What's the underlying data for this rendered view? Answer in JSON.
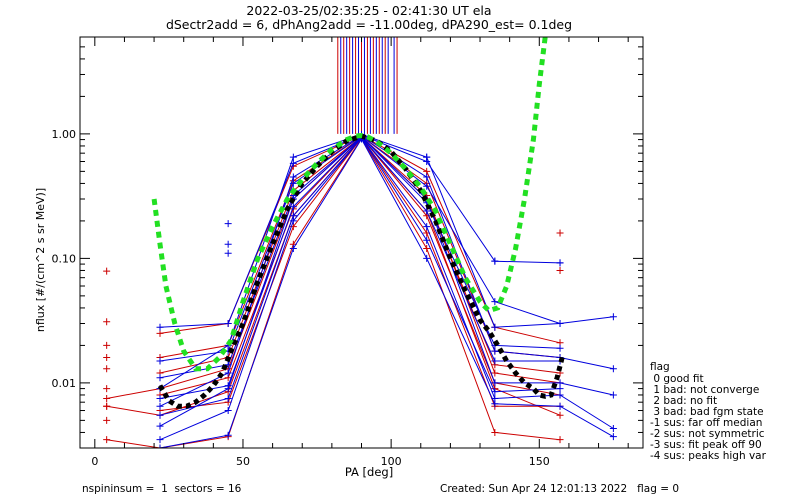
{
  "chart_data": {
    "type": "line",
    "title_lines": [
      "2022-03-25/02:35:25 - 02:41:30 UT ela",
      "dSectr2add = 6, dPhAng2add = -11.00deg, dPA290_est=   0.1deg"
    ],
    "xlabel": "PA [deg]",
    "ylabel": "nflux [#/(cm^2 s sr MeV)]",
    "xlim": [
      -5,
      185
    ],
    "ylim": [
      0.003,
      6
    ],
    "yscale": "log",
    "x_ticks": [
      "0",
      "50",
      "100",
      "150"
    ],
    "y_ticks": [
      "0.01",
      "0.10",
      "1.00"
    ],
    "x_minor_step": 10,
    "colors": {
      "red": "#cc0000",
      "blue": "#0000dd",
      "green": "#22e022",
      "black": "#000000"
    },
    "red_series": [
      {
        "x": [
          4,
          22,
          45,
          67,
          90,
          112,
          135,
          157
        ],
        "y": [
          0.0075,
          0.009,
          0.013,
          0.3,
          0.95,
          0.32,
          0.012,
          0.01
        ]
      },
      {
        "x": [
          4,
          22,
          45,
          67,
          90,
          112,
          135,
          157
        ],
        "y": [
          0.0065,
          0.0055,
          0.0085,
          0.22,
          0.93,
          0.24,
          0.009,
          0.0055
        ]
      },
      {
        "x": [
          4,
          22,
          45,
          67,
          90,
          112,
          135,
          157
        ],
        "y": [
          0.0035,
          0.003,
          0.0037,
          0.13,
          0.92,
          0.12,
          0.004,
          0.0035
        ]
      },
      {
        "x": [
          22,
          45,
          67,
          90,
          112,
          135,
          157
        ],
        "y": [
          0.025,
          0.03,
          0.55,
          0.97,
          0.5,
          0.028,
          0.021
        ]
      },
      {
        "x": [
          22,
          45,
          67,
          90,
          112,
          135,
          157
        ],
        "y": [
          0.016,
          0.02,
          0.42,
          0.96,
          0.4,
          0.018,
          0.016
        ]
      },
      {
        "x": [
          22,
          45,
          67,
          90,
          112,
          135,
          157
        ],
        "y": [
          0.012,
          0.016,
          0.35,
          0.95,
          0.3,
          0.014,
          0.012
        ]
      },
      {
        "x": [
          22,
          45,
          67,
          90,
          112,
          135,
          157
        ],
        "y": [
          0.008,
          0.011,
          0.25,
          0.94,
          0.22,
          0.01,
          0.008
        ]
      },
      {
        "x": [
          22,
          45,
          67,
          90,
          112,
          135,
          157
        ],
        "y": [
          0.006,
          0.007,
          0.18,
          0.93,
          0.16,
          0.0065,
          0.0065
        ]
      }
    ],
    "blue_series": [
      {
        "x": [
          22,
          45,
          67,
          90,
          112,
          135,
          157,
          175
        ],
        "y": [
          0.009,
          0.02,
          0.65,
          0.99,
          0.65,
          0.028,
          0.03,
          0.034
        ]
      },
      {
        "x": [
          22,
          45,
          67,
          90,
          112,
          135,
          157,
          175
        ],
        "y": [
          0.0065,
          0.012,
          0.45,
          0.97,
          0.45,
          0.018,
          0.016,
          0.013
        ]
      },
      {
        "x": [
          22,
          45,
          67,
          90,
          112,
          135,
          157,
          175
        ],
        "y": [
          0.0045,
          0.009,
          0.3,
          0.95,
          0.3,
          0.01,
          0.01,
          0.008
        ]
      },
      {
        "x": [
          22,
          45,
          67,
          90,
          112,
          135,
          157,
          175
        ],
        "y": [
          0.0035,
          0.006,
          0.2,
          0.93,
          0.18,
          0.0075,
          0.008,
          0.0043
        ]
      },
      {
        "x": [
          22,
          45,
          67,
          90,
          112,
          135,
          157,
          175
        ],
        "y": [
          0.003,
          0.0038,
          0.12,
          0.91,
          0.1,
          0.0068,
          0.0065,
          0.0037
        ]
      },
      {
        "x": [
          22,
          45,
          67,
          90,
          112,
          135,
          157
        ],
        "y": [
          0.028,
          0.03,
          0.58,
          0.98,
          0.6,
          0.095,
          0.092
        ]
      },
      {
        "x": [
          22,
          45,
          67,
          90,
          112,
          135,
          157
        ],
        "y": [
          0.015,
          0.018,
          0.4,
          0.96,
          0.38,
          0.045,
          0.03
        ]
      },
      {
        "x": [
          22,
          45,
          67,
          90,
          112,
          135,
          157
        ],
        "y": [
          0.011,
          0.014,
          0.32,
          0.95,
          0.28,
          0.02,
          0.019
        ]
      },
      {
        "x": [
          22,
          45,
          67,
          90,
          112,
          135,
          157
        ],
        "y": [
          0.0075,
          0.0095,
          0.26,
          0.94,
          0.24,
          0.015,
          0.015
        ]
      },
      {
        "x": [
          22,
          45,
          67,
          90,
          112,
          135,
          157
        ],
        "y": [
          0.0055,
          0.0075,
          0.22,
          0.93,
          0.14,
          0.0085,
          0.009
        ]
      }
    ],
    "red_isolated_points": [
      [
        4,
        0.079
      ],
      [
        4,
        0.031
      ],
      [
        4,
        0.02
      ],
      [
        4,
        0.016
      ],
      [
        4,
        0.013
      ],
      [
        4,
        0.009
      ],
      [
        4,
        0.0065
      ],
      [
        4,
        0.005
      ],
      [
        157,
        0.16
      ],
      [
        157,
        0.08
      ]
    ],
    "blue_isolated_points": [
      [
        45,
        0.19
      ],
      [
        45,
        0.13
      ],
      [
        45,
        0.11
      ],
      [
        112,
        0.65
      ],
      [
        135,
        0.095
      ],
      [
        157,
        0.092
      ]
    ],
    "spikes_red_x": [
      82,
      84,
      86,
      88,
      90,
      92,
      94,
      96,
      98,
      102
    ],
    "spikes_blue_x": [
      83,
      85,
      87,
      89,
      91,
      93,
      95,
      97,
      99,
      101
    ],
    "green_fit": {
      "x": [
        20,
        22,
        24,
        27,
        30,
        34,
        38,
        42,
        46,
        50,
        55,
        60,
        65,
        70,
        75,
        80,
        85,
        88,
        90,
        92,
        95,
        100,
        105,
        110,
        115,
        120,
        125,
        130,
        133,
        136,
        139,
        142,
        145,
        148,
        150,
        152
      ],
      "y": [
        0.3,
        0.13,
        0.06,
        0.03,
        0.018,
        0.013,
        0.013,
        0.016,
        0.022,
        0.045,
        0.1,
        0.18,
        0.3,
        0.43,
        0.58,
        0.75,
        0.9,
        0.96,
        0.97,
        0.95,
        0.87,
        0.7,
        0.52,
        0.37,
        0.24,
        0.13,
        0.07,
        0.045,
        0.038,
        0.04,
        0.06,
        0.12,
        0.3,
        0.9,
        2.5,
        6.0
      ]
    },
    "black_fit": {
      "x": [
        22,
        25,
        28,
        31,
        34,
        37,
        40,
        43,
        46,
        50,
        55,
        60,
        65,
        70,
        75,
        80,
        85,
        90,
        95,
        100,
        105,
        110,
        115,
        120,
        125,
        130,
        133,
        136,
        139,
        142,
        145,
        148,
        150,
        152,
        154,
        156,
        158
      ],
      "y": [
        0.0095,
        0.0072,
        0.0065,
        0.0065,
        0.007,
        0.008,
        0.0095,
        0.012,
        0.018,
        0.03,
        0.065,
        0.13,
        0.25,
        0.4,
        0.55,
        0.72,
        0.88,
        0.96,
        0.88,
        0.72,
        0.52,
        0.35,
        0.2,
        0.1,
        0.055,
        0.032,
        0.026,
        0.02,
        0.015,
        0.012,
        0.01,
        0.009,
        0.008,
        0.0078,
        0.008,
        0.011,
        0.017
      ]
    }
  },
  "legend": {
    "title": "flag",
    "entries": [
      " 0 good fit",
      " 1 bad: not converge",
      " 2 bad: no fit",
      " 3 bad: bad fgm state",
      "-1 sus: far off median",
      "-2 sus: not symmetric",
      "-3 sus: fit peak off 90",
      "-4 sus: peaks high var"
    ]
  },
  "footer": {
    "left": "nspininsum =  1  sectors = 16",
    "right": "Created: Sun Apr 24 12:01:13 2022   flag = 0"
  }
}
